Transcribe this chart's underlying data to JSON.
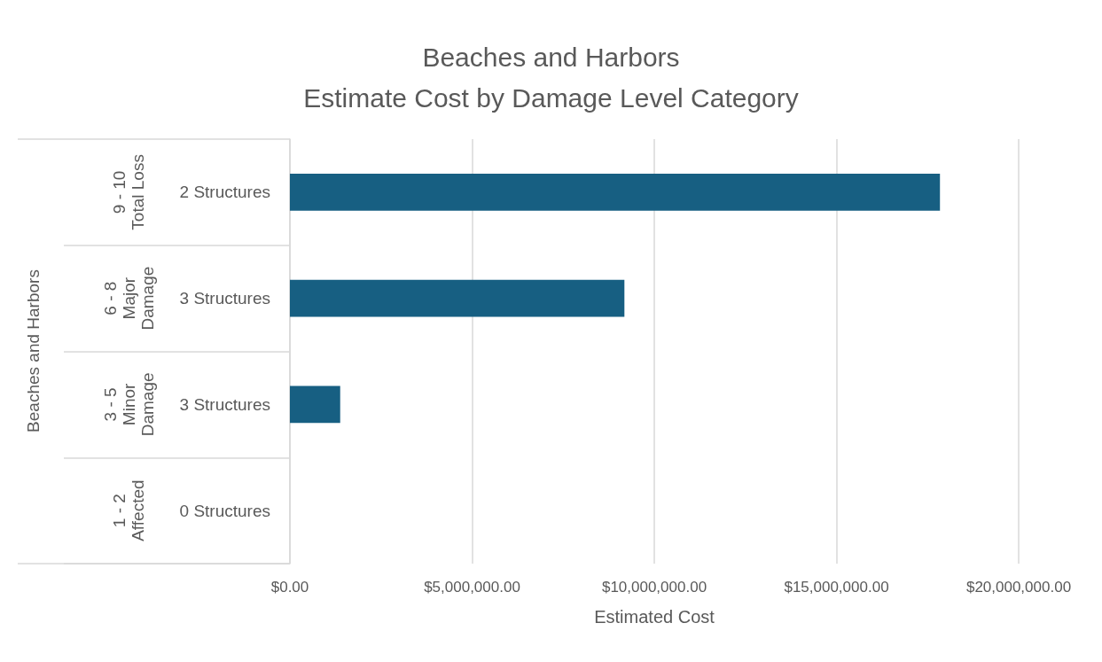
{
  "chart_data": {
    "type": "bar",
    "orientation": "horizontal",
    "title": "Beaches and Harbors\nEstimate Cost by Damage Level Category",
    "xlabel": "Estimated Cost",
    "categories": [
      "2 Structures",
      "3 Structures",
      "3 Structures",
      "0 Structures"
    ],
    "annotations": [
      "9 - 10\nTotal Loss",
      "6 - 8\nMajor\nDamage",
      "3 - 5\nMinor\nDamage",
      "1 - 2\nAffected",
      "Beaches and Harbors"
    ],
    "values": [
      17840000,
      9180000,
      1380000,
      0
    ],
    "color": "#175f82",
    "xlim": [
      0,
      20000000
    ],
    "xticks": [
      {
        "value": 0,
        "label": "$0.00"
      },
      {
        "value": 5000000,
        "label": "$5,000,000.00"
      },
      {
        "value": 10000000,
        "label": "$10,000,000.00"
      },
      {
        "value": 15000000,
        "label": "$15,000,000.00"
      },
      {
        "value": 20000000,
        "label": "$20,000,000.00"
      }
    ],
    "grid": "x"
  }
}
